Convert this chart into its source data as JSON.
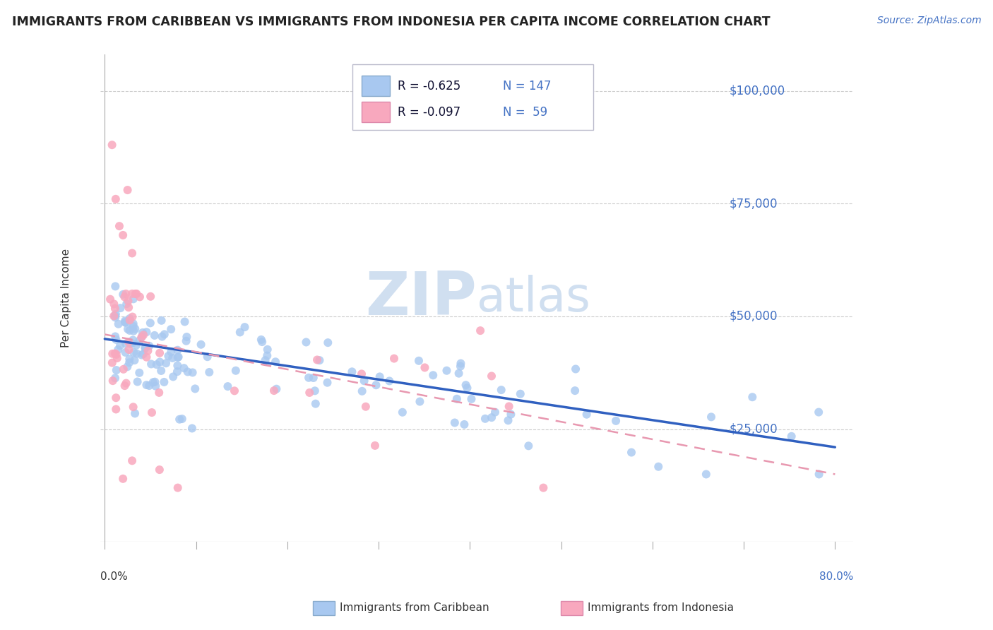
{
  "title": "IMMIGRANTS FROM CARIBBEAN VS IMMIGRANTS FROM INDONESIA PER CAPITA INCOME CORRELATION CHART",
  "source": "Source: ZipAtlas.com",
  "ylabel": "Per Capita Income",
  "ylim": [
    0,
    108000
  ],
  "xlim": [
    -0.005,
    0.82
  ],
  "legend_caribbean_R": "-0.625",
  "legend_caribbean_N": "147",
  "legend_indonesia_R": "-0.097",
  "legend_indonesia_N": "59",
  "caribbean_color": "#a8c8f0",
  "indonesia_color": "#f8a8be",
  "caribbean_line_color": "#3060c0",
  "indonesia_line_color": "#e898b0",
  "title_color": "#222222",
  "axis_label_color": "#4472c4",
  "watermark_color": "#d0dff0",
  "background_color": "#ffffff",
  "car_line_x0": 0.0,
  "car_line_y0": 45000,
  "car_line_x1": 0.8,
  "car_line_y1": 21000,
  "ind_line_x0": 0.0,
  "ind_line_y0": 46000,
  "ind_line_x1": 0.8,
  "ind_line_y1": 15000
}
